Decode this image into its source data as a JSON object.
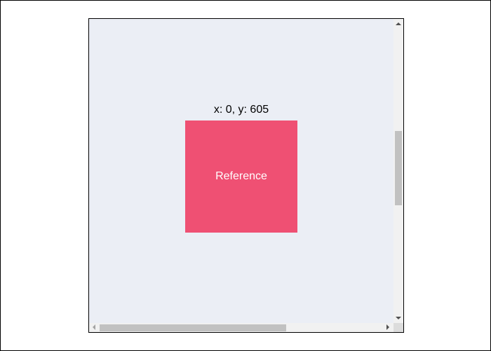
{
  "coordinates": {
    "label": "x: 0, y: 605"
  },
  "reference_box": {
    "label": "Reference",
    "color": "#ef5073"
  },
  "scroll_area": {
    "background": "#ebeef5",
    "vertical_scroll_position": 0.37,
    "horizontal_scroll_position": 0.0
  },
  "icons": {
    "scroll_up": "triangle-up",
    "scroll_down": "triangle-down",
    "scroll_left": "triangle-left",
    "scroll_right": "triangle-right"
  }
}
